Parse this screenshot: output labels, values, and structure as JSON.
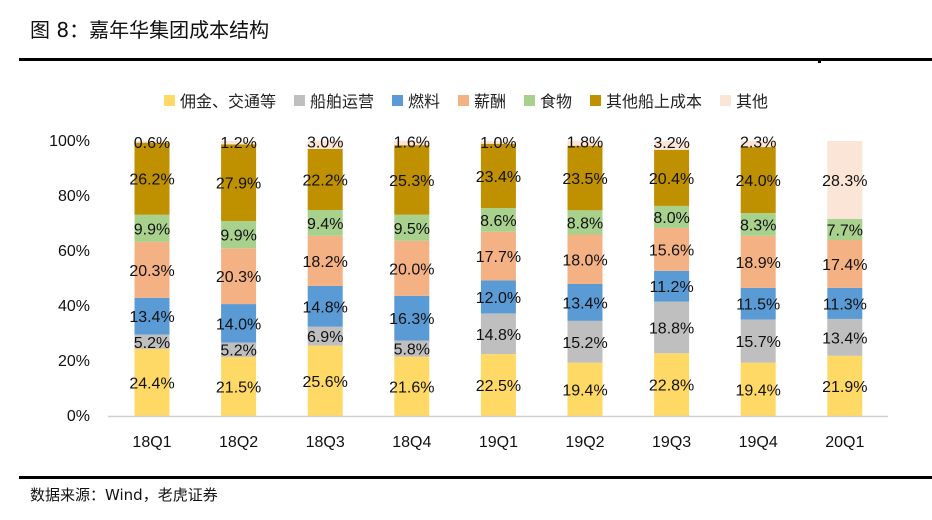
{
  "header": {
    "title": "图 8：嘉年华集团成本结构"
  },
  "footer": {
    "source": "数据来源：Wind，老虎证券"
  },
  "chart_data": {
    "type": "bar",
    "stacked": true,
    "title": "图 8：嘉年华集团成本结构",
    "xlabel": "",
    "ylabel": "",
    "ylim": [
      0,
      100
    ],
    "yticks": [
      "0%",
      "20%",
      "40%",
      "60%",
      "80%",
      "100%"
    ],
    "legend_position": "top",
    "grid": false,
    "categories": [
      "18Q1",
      "18Q2",
      "18Q3",
      "18Q4",
      "19Q1",
      "19Q2",
      "19Q3",
      "19Q4",
      "20Q1"
    ],
    "series": [
      {
        "name": "佣金、交通等",
        "color": "#FFD966",
        "values": [
          24.4,
          21.5,
          25.6,
          21.6,
          22.5,
          19.4,
          22.8,
          19.4,
          21.9
        ],
        "labels": [
          "24.4%",
          "21.5%",
          "25.6%",
          "21.6%",
          "22.5%",
          "19.4%",
          "22.8%",
          "19.4%",
          "21.9%"
        ]
      },
      {
        "name": "船舶运营",
        "color": "#BFBFBF",
        "values": [
          5.2,
          5.2,
          6.9,
          5.8,
          14.8,
          15.2,
          18.8,
          15.7,
          13.4
        ],
        "labels": [
          "5.2%",
          "5.2%",
          "6.9%",
          "5.8%",
          "14.8%",
          "15.2%",
          "18.8%",
          "15.7%",
          "13.4%"
        ]
      },
      {
        "name": "燃料",
        "color": "#5B9BD5",
        "values": [
          13.4,
          14.0,
          14.8,
          16.3,
          12.0,
          13.4,
          11.2,
          11.5,
          11.3
        ],
        "labels": [
          "13.4%",
          "14.0%",
          "14.8%",
          "16.3%",
          "12.0%",
          "13.4%",
          "11.2%",
          "11.5%",
          "11.3%"
        ]
      },
      {
        "name": "薪酬",
        "color": "#F4B183",
        "values": [
          20.3,
          20.3,
          18.2,
          20.0,
          17.7,
          18.0,
          15.6,
          18.9,
          17.4
        ],
        "labels": [
          "20.3%",
          "20.3%",
          "18.2%",
          "20.0%",
          "17.7%",
          "18.0%",
          "15.6%",
          "18.9%",
          "17.4%"
        ]
      },
      {
        "name": "食物",
        "color": "#A9D18E",
        "values": [
          9.9,
          9.9,
          9.4,
          9.5,
          8.6,
          8.8,
          8.0,
          8.3,
          7.7
        ],
        "labels": [
          "9.9%",
          "9.9%",
          "9.4%",
          "9.5%",
          "8.6%",
          "8.8%",
          "8.0%",
          "8.3%",
          "7.7%"
        ]
      },
      {
        "name": "其他船上成本",
        "color": "#BF9000",
        "values": [
          26.2,
          27.9,
          22.2,
          25.3,
          23.4,
          23.5,
          20.4,
          24.0,
          0
        ],
        "labels": [
          "26.2%",
          "27.9%",
          "22.2%",
          "25.3%",
          "23.4%",
          "23.5%",
          "20.4%",
          "24.0%",
          ""
        ]
      },
      {
        "name": "其他",
        "color": "#FBE5D6",
        "values": [
          0.6,
          1.2,
          3.0,
          1.6,
          1.0,
          1.8,
          3.2,
          2.3,
          28.3
        ],
        "labels": [
          "0.6%",
          "1.2%",
          "3.0%",
          "1.6%",
          "1.0%",
          "1.8%",
          "3.2%",
          "2.3%",
          "28.3%"
        ]
      }
    ]
  }
}
